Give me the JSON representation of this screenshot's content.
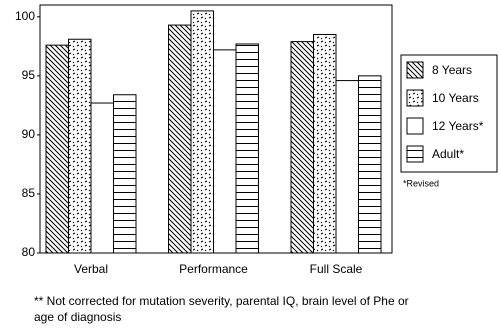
{
  "chart_data": {
    "type": "bar",
    "categories": [
      "Verbal",
      "Performance",
      "Full Scale"
    ],
    "series": [
      {
        "name": "8 Years",
        "color": "#000000",
        "fill": "diagonal-hatch",
        "values": [
          97.6,
          99.3,
          97.9
        ]
      },
      {
        "name": "10 Years",
        "color": "#000000",
        "fill": "dashes",
        "values": [
          98.1,
          100.5,
          98.5
        ]
      },
      {
        "name": "12 Years*",
        "color": "#000000",
        "fill": "white",
        "values": [
          92.7,
          97.2,
          94.6
        ]
      },
      {
        "name": "Adult*",
        "color": "#000000",
        "fill": "horizontal-lines",
        "values": [
          93.4,
          97.7,
          95.0
        ]
      }
    ],
    "ylim": [
      80,
      101
    ],
    "yticks": [
      80,
      85,
      90,
      95,
      100
    ],
    "grid": false,
    "legend": "right",
    "legend_note": "*Revised",
    "footnote_lines": [
      "** Not corrected for mutation severity, parental IQ, brain level of Phe or",
      "age of diagnosis"
    ]
  }
}
